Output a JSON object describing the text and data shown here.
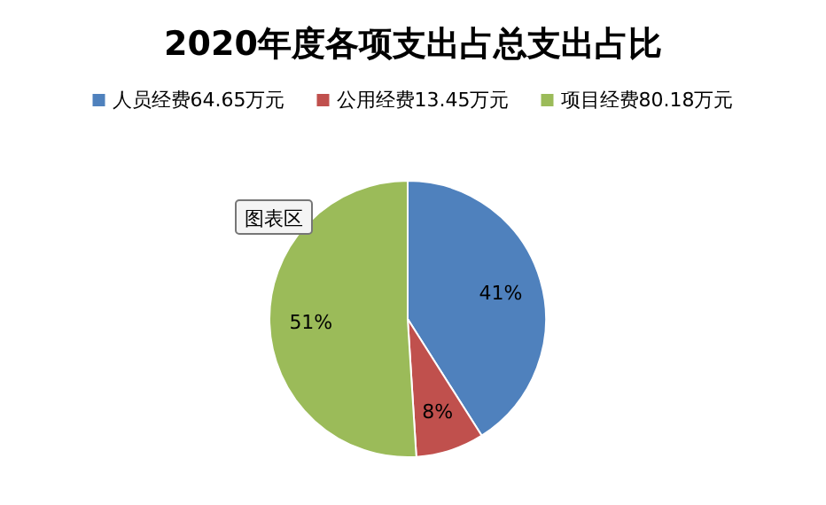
{
  "chart_data": {
    "type": "pie",
    "title": "2020年度各项支出占总支出占比",
    "categories": [
      "人员经费64.65万元",
      "公用经费13.45万元",
      "项目经费80.18万元"
    ],
    "values": [
      41,
      8,
      51
    ],
    "colors": [
      "#4f81bd",
      "#c0504d",
      "#9bbb59"
    ],
    "value_labels": [
      "41%",
      "8%",
      "51%"
    ],
    "legend": "top",
    "annotations": [
      "图表区"
    ]
  }
}
